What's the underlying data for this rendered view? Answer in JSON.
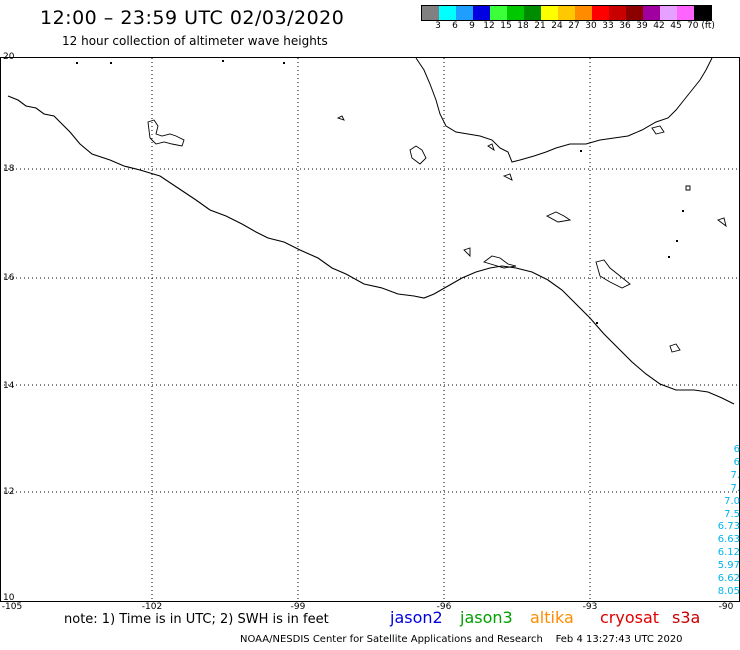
{
  "header": {
    "title": "12:00 – 23:59 UTC 02/03/2020",
    "subtitle": "12 hour collection of altimeter wave heights"
  },
  "colorbar": {
    "colors": [
      "#808080",
      "#00ffff",
      "#1e9fff",
      "#0000e0",
      "#3cff3c",
      "#00c800",
      "#008c00",
      "#ffff00",
      "#ffc800",
      "#ff8c00",
      "#ff0000",
      "#c80000",
      "#8c0000",
      "#a000a0",
      "#e6a0ff",
      "#ff64ff",
      "#000000"
    ],
    "labels": [
      "3",
      "6",
      "9",
      "12",
      "15",
      "18",
      "21",
      "24",
      "27",
      "30",
      "33",
      "36",
      "39",
      "42",
      "45",
      "70 (ft)"
    ]
  },
  "map": {
    "lat_labels": [
      "20",
      "18",
      "16",
      "14",
      "12",
      "10"
    ],
    "lon_labels": [
      "-105",
      "-102",
      "-99",
      "-96",
      "-93",
      "-90"
    ],
    "lon_range": [
      -105,
      -90
    ],
    "lat_range": [
      10,
      20
    ],
    "swh_values": [
      "6",
      "6",
      "7.",
      "7.",
      "7.0",
      "7.5",
      "6.73",
      "6.63",
      "6.12",
      "5.97",
      "6.62",
      "8.05"
    ],
    "swh_color": "#00b4ee"
  },
  "footer": {
    "note": "note: 1) Time is in UTC; 2) SWH is in feet",
    "satellites": [
      {
        "name": "jason2",
        "color": "#0000e0"
      },
      {
        "name": "jason3",
        "color": "#00a000"
      },
      {
        "name": "altika",
        "color": "#ff8c00"
      },
      {
        "name": "cryosat",
        "color": "#e00000"
      },
      {
        "name": "s3a",
        "color": "#c80000"
      }
    ],
    "credit": "NOAA/NESDIS Center for Satellite Applications and Research",
    "timestamp": "Feb  4 13:27:43 UTC 2020"
  }
}
